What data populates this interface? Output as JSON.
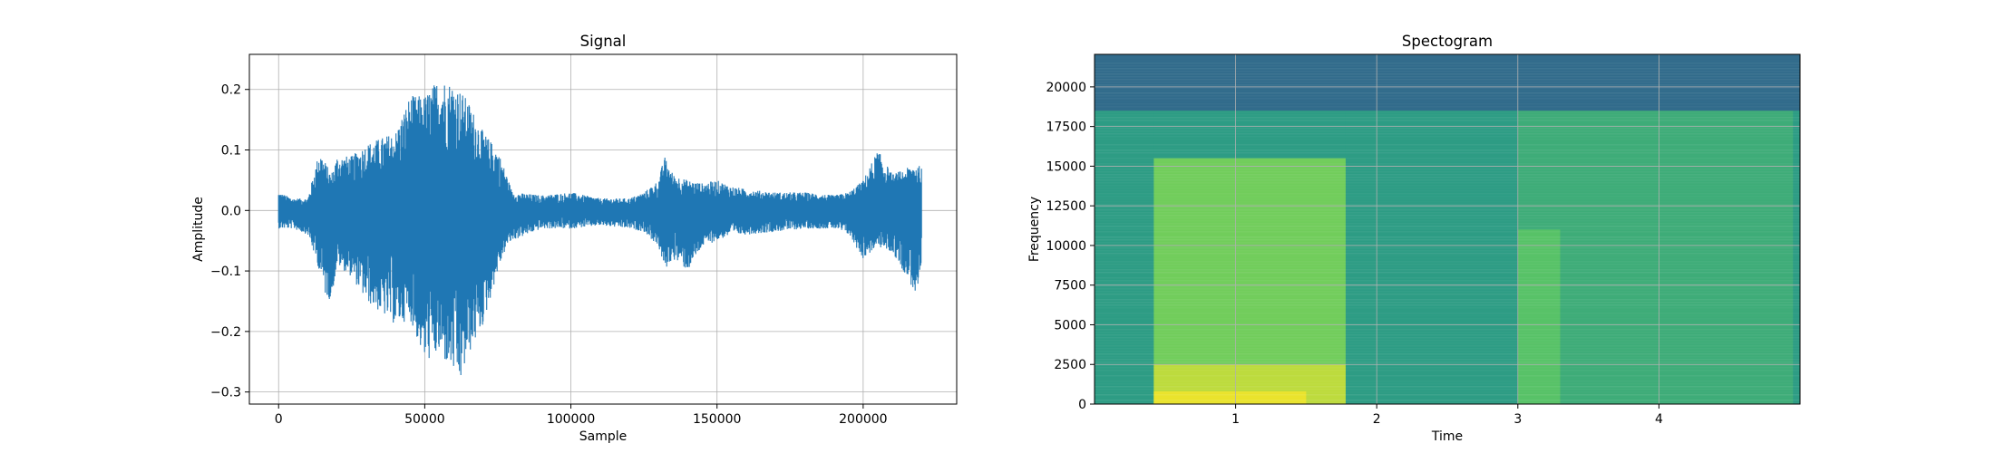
{
  "chart_data": [
    {
      "type": "line",
      "title": "Signal",
      "xlabel": "Sample",
      "ylabel": "Amplitude",
      "xlim": [
        -10000,
        232000
      ],
      "ylim": [
        -0.32,
        0.258
      ],
      "xticks": [
        0,
        50000,
        100000,
        150000,
        200000
      ],
      "xtick_labels": [
        "0",
        "50000",
        "100000",
        "150000",
        "200000"
      ],
      "yticks": [
        -0.3,
        -0.2,
        -0.1,
        0.0,
        0.1,
        0.2
      ],
      "ytick_labels": [
        "−0.3",
        "−0.2",
        "−0.1",
        "0.0",
        "0.1",
        "0.2"
      ],
      "grid": true,
      "line_color": "#1f77b4",
      "series": [
        {
          "x": [
            0,
            5000,
            10000,
            14000,
            16000,
            18000,
            20000,
            25000,
            30000,
            35000,
            40000,
            45000,
            50000,
            55000,
            60000,
            62000,
            65000,
            70000,
            75000,
            78000,
            80000,
            90000,
            100000,
            110000,
            120000,
            125000,
            130000,
            132000,
            135000,
            140000,
            145000,
            150000,
            155000,
            160000,
            170000,
            180000,
            190000,
            195000,
            200000,
            205000,
            210000,
            215000,
            218000,
            220000
          ],
          "upper": [
            0.03,
            0.02,
            0.02,
            0.1,
            0.08,
            0.06,
            0.09,
            0.09,
            0.11,
            0.12,
            0.13,
            0.19,
            0.19,
            0.22,
            0.21,
            0.2,
            0.18,
            0.13,
            0.1,
            0.06,
            0.03,
            0.025,
            0.03,
            0.02,
            0.02,
            0.03,
            0.05,
            0.09,
            0.06,
            0.05,
            0.045,
            0.05,
            0.04,
            0.035,
            0.03,
            0.03,
            0.025,
            0.03,
            0.05,
            0.1,
            0.06,
            0.07,
            0.08,
            0.07
          ],
          "lower": [
            -0.03,
            -0.03,
            -0.04,
            -0.1,
            -0.14,
            -0.15,
            -0.09,
            -0.11,
            -0.15,
            -0.17,
            -0.19,
            -0.18,
            -0.25,
            -0.24,
            -0.27,
            -0.29,
            -0.24,
            -0.19,
            -0.1,
            -0.06,
            -0.05,
            -0.03,
            -0.03,
            -0.025,
            -0.03,
            -0.035,
            -0.06,
            -0.1,
            -0.08,
            -0.1,
            -0.06,
            -0.05,
            -0.04,
            -0.04,
            -0.035,
            -0.03,
            -0.03,
            -0.04,
            -0.08,
            -0.06,
            -0.07,
            -0.11,
            -0.14,
            -0.12
          ]
        }
      ]
    },
    {
      "type": "heatmap",
      "title": "Spectogram",
      "xlabel": "Time",
      "ylabel": "Frequency",
      "xlim": [
        0,
        5.0
      ],
      "ylim": [
        0,
        22050
      ],
      "xticks": [
        1,
        2,
        3,
        4
      ],
      "xtick_labels": [
        "1",
        "2",
        "3",
        "4"
      ],
      "yticks": [
        0,
        2500,
        5000,
        7500,
        10000,
        12500,
        15000,
        17500,
        20000
      ],
      "ytick_labels": [
        "0",
        "2500",
        "5000",
        "7500",
        "10000",
        "12500",
        "15000",
        "17500",
        "20000"
      ],
      "grid": true,
      "colormap": "viridis",
      "intensity_regions": [
        {
          "t": [
            0.0,
            0.42
          ],
          "f": [
            0,
            18500
          ],
          "level": 0.55
        },
        {
          "t": [
            0.42,
            1.78
          ],
          "f": [
            0,
            15500
          ],
          "level": 0.78
        },
        {
          "t": [
            0.42,
            1.78
          ],
          "f": [
            0,
            2500
          ],
          "level": 0.9
        },
        {
          "t": [
            0.42,
            1.5
          ],
          "f": [
            0,
            800
          ],
          "level": 0.97
        },
        {
          "t": [
            1.78,
            3.0
          ],
          "f": [
            0,
            18500
          ],
          "level": 0.55
        },
        {
          "t": [
            3.0,
            4.95
          ],
          "f": [
            0,
            18500
          ],
          "level": 0.62
        },
        {
          "t": [
            3.0,
            3.3
          ],
          "f": [
            0,
            11000
          ],
          "level": 0.72
        },
        {
          "t": [
            0.0,
            5.0
          ],
          "f": [
            18500,
            22050
          ],
          "level": 0.35
        }
      ]
    }
  ]
}
